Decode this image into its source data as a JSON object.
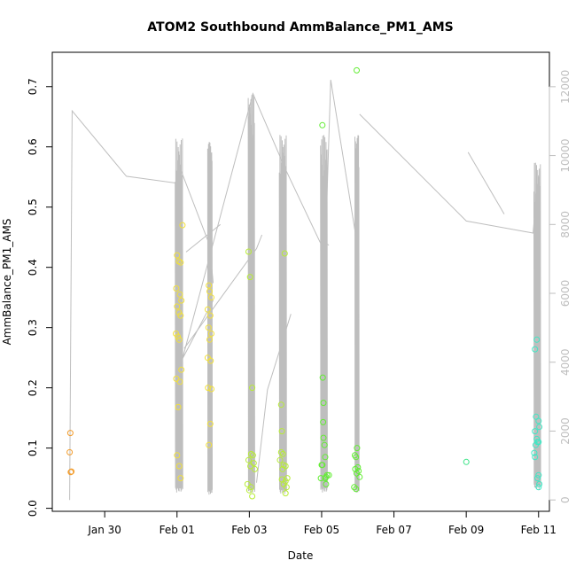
{
  "chart_data": {
    "type": "scatter",
    "title": "ATOM2 Southbound AmmBalance_PM1_AMS",
    "xlabel": "Date",
    "ylabel": "AmmBalance_PM1_AMS",
    "xlim": [
      28.55,
      42.3
    ],
    "ylim": [
      -0.005,
      0.757
    ],
    "y2lim": [
      -330,
      13000
    ],
    "x_axis_unit": "day of January (Feb 01 = 32)",
    "x_ticks": [
      {
        "value": 30,
        "label": "Jan 30"
      },
      {
        "value": 32,
        "label": "Feb 01"
      },
      {
        "value": 34,
        "label": "Feb 03"
      },
      {
        "value": 36,
        "label": "Feb 05"
      },
      {
        "value": 38,
        "label": "Feb 07"
      },
      {
        "value": 40,
        "label": "Feb 09"
      },
      {
        "value": 42,
        "label": "Feb 11"
      }
    ],
    "y_ticks": [
      0.0,
      0.1,
      0.2,
      0.3,
      0.4,
      0.5,
      0.6,
      0.7
    ],
    "y2_ticks": [
      0,
      2000,
      4000,
      6000,
      8000,
      10000,
      12000
    ],
    "legend": "none",
    "grid": false,
    "series": [
      {
        "color": "#F39C2B",
        "points": [
          [
            29.05,
            0.125
          ],
          [
            29.03,
            0.093
          ],
          [
            29.08,
            0.061
          ],
          [
            29.06,
            0.06
          ]
        ]
      },
      {
        "color": "#F2E03A",
        "points": [
          [
            32.0,
            0.42
          ],
          [
            32.05,
            0.41
          ],
          [
            32.1,
            0.408
          ],
          [
            32.15,
            0.47
          ],
          [
            31.98,
            0.365
          ],
          [
            32.08,
            0.355
          ],
          [
            32.12,
            0.345
          ],
          [
            32.0,
            0.335
          ],
          [
            32.05,
            0.325
          ],
          [
            32.1,
            0.32
          ],
          [
            31.97,
            0.29
          ],
          [
            32.02,
            0.285
          ],
          [
            32.06,
            0.28
          ],
          [
            32.12,
            0.23
          ],
          [
            31.98,
            0.215
          ],
          [
            32.08,
            0.21
          ],
          [
            32.03,
            0.168
          ],
          [
            32.0,
            0.088
          ],
          [
            32.06,
            0.07
          ],
          [
            32.1,
            0.05
          ],
          [
            32.88,
            0.37
          ],
          [
            32.9,
            0.36
          ],
          [
            32.95,
            0.35
          ],
          [
            32.85,
            0.33
          ],
          [
            32.92,
            0.32
          ],
          [
            32.87,
            0.3
          ],
          [
            32.95,
            0.29
          ],
          [
            32.9,
            0.28
          ],
          [
            32.85,
            0.25
          ],
          [
            32.93,
            0.245
          ],
          [
            32.86,
            0.2
          ],
          [
            32.95,
            0.198
          ],
          [
            32.92,
            0.14
          ],
          [
            32.88,
            0.105
          ]
        ]
      },
      {
        "color": "#B8EC36",
        "points": [
          [
            33.98,
            0.426
          ],
          [
            34.02,
            0.384
          ],
          [
            34.08,
            0.2
          ],
          [
            34.05,
            0.09
          ],
          [
            34.1,
            0.088
          ],
          [
            33.98,
            0.08
          ],
          [
            34.12,
            0.075
          ],
          [
            34.03,
            0.07
          ],
          [
            34.15,
            0.065
          ],
          [
            33.95,
            0.04
          ],
          [
            34.05,
            0.035
          ],
          [
            34.0,
            0.03
          ],
          [
            34.08,
            0.02
          ],
          [
            34.88,
            0.172
          ],
          [
            34.9,
            0.128
          ],
          [
            34.88,
            0.093
          ],
          [
            34.93,
            0.09
          ],
          [
            34.85,
            0.08
          ],
          [
            34.95,
            0.072
          ],
          [
            35.0,
            0.07
          ],
          [
            34.92,
            0.065
          ],
          [
            35.05,
            0.05
          ],
          [
            34.9,
            0.048
          ],
          [
            35.0,
            0.045
          ],
          [
            34.95,
            0.04
          ],
          [
            35.03,
            0.035
          ],
          [
            35.0,
            0.025
          ],
          [
            34.98,
            0.423
          ]
        ]
      },
      {
        "color": "#62ED33",
        "points": [
          [
            36.02,
            0.636
          ],
          [
            36.03,
            0.217
          ],
          [
            36.05,
            0.175
          ],
          [
            36.04,
            0.143
          ],
          [
            36.05,
            0.117
          ],
          [
            36.08,
            0.105
          ],
          [
            36.1,
            0.085
          ],
          [
            36.0,
            0.072
          ],
          [
            36.02,
            0.072
          ],
          [
            36.15,
            0.055
          ],
          [
            36.12,
            0.052
          ],
          [
            36.2,
            0.055
          ],
          [
            36.1,
            0.05
          ],
          [
            35.98,
            0.05
          ],
          [
            36.12,
            0.04
          ],
          [
            36.97,
            0.727
          ],
          [
            36.98,
            0.1
          ],
          [
            36.92,
            0.088
          ],
          [
            36.95,
            0.085
          ],
          [
            37.0,
            0.068
          ],
          [
            36.93,
            0.065
          ],
          [
            37.02,
            0.062
          ],
          [
            36.97,
            0.058
          ],
          [
            37.05,
            0.052
          ],
          [
            36.9,
            0.035
          ],
          [
            36.95,
            0.032
          ]
        ]
      },
      {
        "color": "#3CE488",
        "points": [
          [
            40.0,
            0.077
          ]
        ]
      },
      {
        "color": "#3FE7C4",
        "points": [
          [
            41.95,
            0.28
          ],
          [
            41.9,
            0.264
          ],
          [
            41.93,
            0.152
          ],
          [
            42.0,
            0.145
          ],
          [
            42.02,
            0.135
          ],
          [
            41.9,
            0.128
          ],
          [
            41.95,
            0.115
          ],
          [
            42.0,
            0.11
          ],
          [
            41.92,
            0.105
          ],
          [
            41.97,
            0.11
          ],
          [
            41.88,
            0.092
          ],
          [
            41.9,
            0.085
          ],
          [
            42.0,
            0.055
          ],
          [
            41.97,
            0.05
          ],
          [
            42.02,
            0.04
          ],
          [
            42.0,
            0.035
          ]
        ]
      }
    ],
    "secondary_series": {
      "color": "#bebebe",
      "segments": [
        [
          [
            29.03,
            0
          ],
          [
            29.1,
            11300
          ],
          [
            30.6,
            9400
          ],
          [
            32.0,
            9200
          ],
          [
            32.1,
            9600
          ],
          [
            32.9,
            7400
          ],
          [
            33.0,
            6300
          ]
        ],
        [
          [
            33.0,
            5800
          ],
          [
            32.15,
            4100
          ],
          [
            34.1,
            11800
          ],
          [
            35.0,
            9600
          ],
          [
            35.95,
            7500
          ],
          [
            36.1,
            7200
          ],
          [
            36.25,
            12200
          ],
          [
            37.0,
            7300
          ]
        ],
        [
          [
            34.2,
            500
          ],
          [
            34.5,
            3200
          ],
          [
            35.15,
            5400
          ]
        ],
        [
          [
            34.35,
            7700
          ],
          [
            34.2,
            7300
          ],
          [
            32.2,
            4400
          ]
        ],
        [
          [
            33.2,
            8000
          ],
          [
            32.25,
            7200
          ]
        ],
        [
          [
            36.0,
            7500
          ],
          [
            36.2,
            7400
          ]
        ],
        [
          [
            37.05,
            11200
          ],
          [
            40.0,
            8100
          ],
          [
            41.85,
            7750
          ],
          [
            41.95,
            9000
          ],
          [
            42.05,
            5700
          ]
        ],
        [
          [
            40.05,
            10100
          ],
          [
            41.05,
            8300
          ]
        ]
      ],
      "spikes": [
        {
          "x": [
            31.95,
            32.15
          ],
          "high": 10500,
          "low": 200
        },
        {
          "x": [
            32.85,
            32.97
          ],
          "high": 10400,
          "low": 150
        },
        {
          "x": [
            33.97,
            34.14
          ],
          "high": 11800,
          "low": 200
        },
        {
          "x": [
            34.83,
            35.02
          ],
          "high": 10600,
          "low": 150
        },
        {
          "x": [
            35.97,
            36.15
          ],
          "high": 10600,
          "low": 200
        },
        {
          "x": [
            36.92,
            37.03
          ],
          "high": 10600,
          "low": 200
        },
        {
          "x": [
            41.87,
            42.05
          ],
          "high": 9800,
          "low": 300
        }
      ]
    }
  }
}
